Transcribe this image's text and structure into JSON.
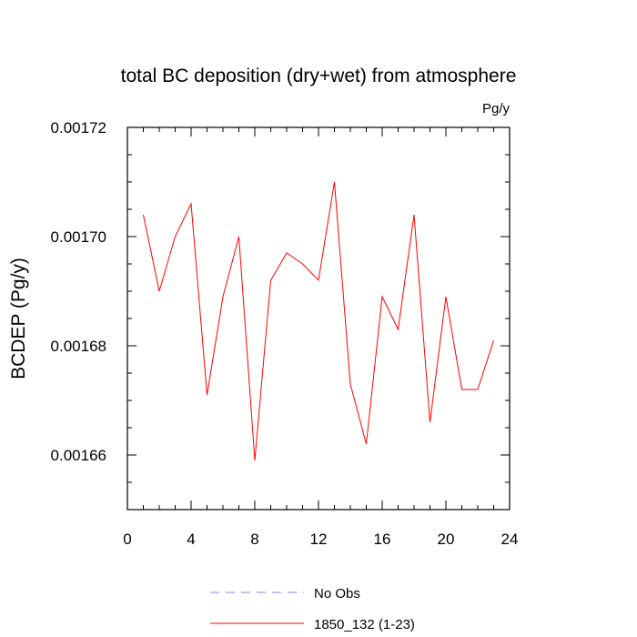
{
  "chart_data": {
    "type": "line",
    "title": "total BC deposition (dry+wet) from atmosphere",
    "units_label": "Pg/y",
    "ylabel": "BCDEP  (Pg/y)",
    "xlabel": "",
    "xlim": [
      0,
      24
    ],
    "ylim": [
      0.00165,
      0.00172
    ],
    "xticks": [
      0,
      4,
      8,
      12,
      16,
      20,
      24
    ],
    "xtick_labels": [
      "0",
      "4",
      "8",
      "12",
      "16",
      "20",
      "24"
    ],
    "yticks": [
      0.00166,
      0.00168,
      0.0017,
      0.00172
    ],
    "ytick_labels": [
      "0.00166",
      "0.00168",
      "0.00170",
      "0.00172"
    ],
    "grid": false,
    "legend_position": "bottom",
    "legend": [
      {
        "label": "No Obs",
        "color": "#8080ff",
        "style": "dashed"
      },
      {
        "label": "1850_132 (1-23)",
        "color": "#ff0000",
        "style": "solid"
      }
    ],
    "series": [
      {
        "name": "1850_132 (1-23)",
        "color": "#ff0000",
        "x": [
          1,
          2,
          3,
          4,
          5,
          6,
          7,
          8,
          9,
          10,
          11,
          12,
          13,
          14,
          15,
          16,
          17,
          18,
          19,
          20,
          21,
          22,
          23
        ],
        "values": [
          0.001704,
          0.00169,
          0.0017,
          0.001706,
          0.001671,
          0.001689,
          0.0017,
          0.001659,
          0.001692,
          0.001697,
          0.001695,
          0.001692,
          0.00171,
          0.001673,
          0.001662,
          0.001689,
          0.001683,
          0.001704,
          0.001666,
          0.001689,
          0.001672,
          0.001672,
          0.001681
        ]
      }
    ]
  }
}
